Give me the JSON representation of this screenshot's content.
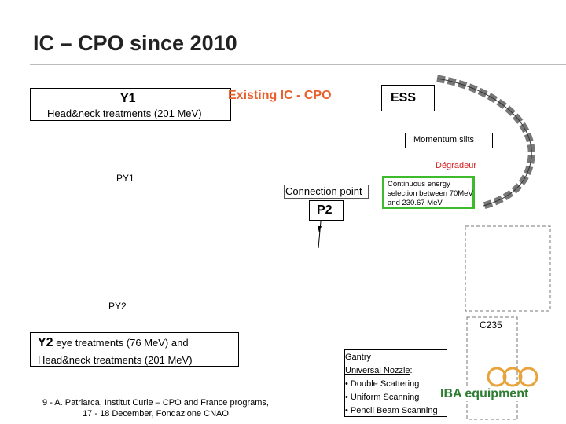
{
  "title": "IC – CPO since 2010",
  "y1": {
    "label": "Y1",
    "description": "Head&neck treatments (201 MeV)"
  },
  "existing_label": "Existing IC - CPO",
  "ess_label": "ESS",
  "momentum_slits": "Momentum slits",
  "degradeur": "Dégradeur",
  "energy_box": "Continuous energy selection between 70MeV and 230.67 MeV",
  "py1": "PY1",
  "connection_point": "Connection point",
  "p2": "P2",
  "py2": "PY2",
  "c235": "C235",
  "y2": {
    "label": "Y2",
    "description_line1": "eye treatments (76 MeV) and",
    "description_line2": "Head&neck treatments (201 MeV)"
  },
  "footer": {
    "line1": "9 - A. Patriarca, Institut Curie – CPO and France programs,",
    "line2": "17 - 18 December, Fondazione CNAO"
  },
  "gantry": {
    "title": "Gantry",
    "nozzle": "Universal Nozzle",
    "items": [
      "Double Scattering",
      "Uniform Scanning",
      "Pencil Beam Scanning"
    ]
  },
  "iba_label": "IBA equipment",
  "colors": {
    "existing": "#e8612c",
    "degradeur": "#d62020",
    "energy_border": "#3dbb2c",
    "iba": "#2e7d32",
    "logo": "#e8a33c"
  }
}
